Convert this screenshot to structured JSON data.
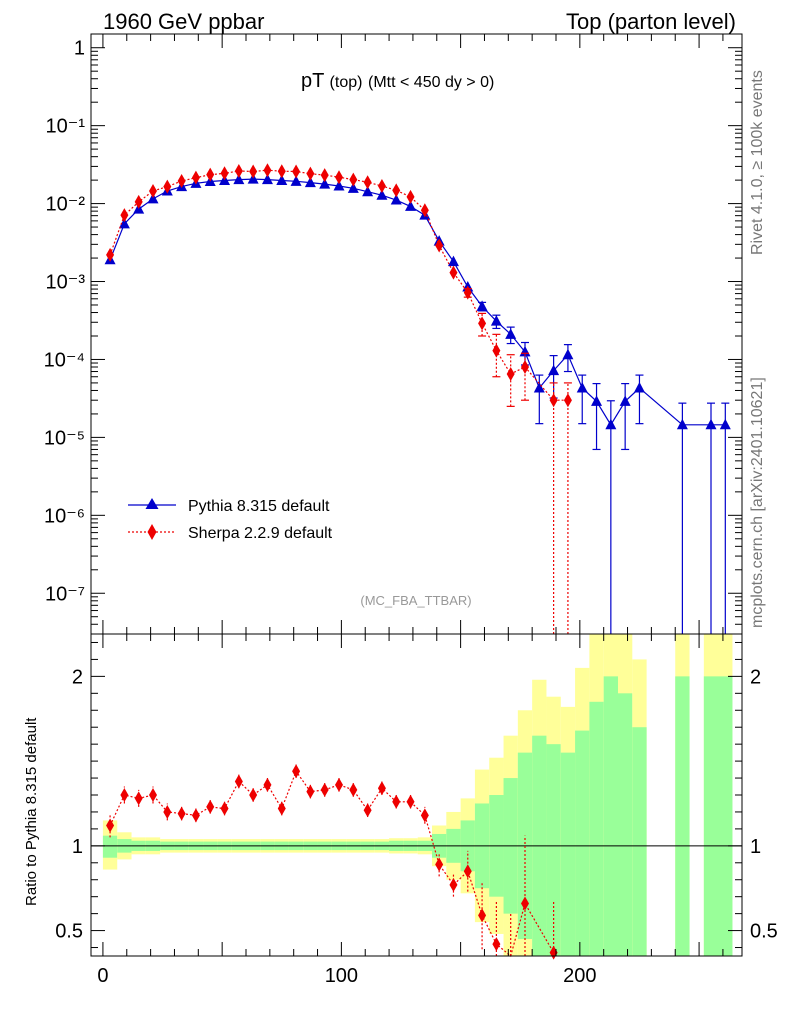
{
  "header": {
    "left": "1960 GeV ppbar",
    "right": "Top (parton level)"
  },
  "side_text": {
    "rivet": "Rivet 4.1.0, ≥ 100k events",
    "mcplots": "mcplots.cern.ch [arXiv:2401.10621]"
  },
  "colors": {
    "pythia": "#0000cc",
    "sherpa": "#ee0000",
    "band_inner": "#99ff99",
    "band_outer": "#ffff99"
  },
  "chart_data": [
    {
      "type": "line",
      "title_main": "pT",
      "title_sub": "(top)",
      "title_cut": "(Mtt < 450 dy > 0)",
      "watermark": "(MC_FBA_TTBAR)",
      "yscale": "log",
      "xlim": [
        -5,
        268
      ],
      "ylim": [
        3e-08,
        1.5
      ],
      "yticks": [
        {
          "label": "1",
          "value": 1
        },
        {
          "label": "10⁻¹",
          "value": 0.1
        },
        {
          "label": "10⁻²",
          "value": 0.01
        },
        {
          "label": "10⁻³",
          "value": 0.001
        },
        {
          "label": "10⁻⁴",
          "value": 0.0001
        },
        {
          "label": "10⁻⁵",
          "value": 1e-05
        },
        {
          "label": "10⁻⁶",
          "value": 1e-06
        },
        {
          "label": "10⁻⁷",
          "value": 1e-07
        }
      ],
      "legend_position": "lower-left",
      "series": [
        {
          "name": "Pythia 8.315 default",
          "marker": "triangle",
          "style": "solid",
          "x": [
            3,
            9,
            15,
            21,
            27,
            33,
            39,
            45,
            51,
            57,
            63,
            69,
            75,
            81,
            87,
            93,
            99,
            105,
            111,
            117,
            123,
            129,
            135,
            141,
            147,
            153,
            159,
            165,
            171,
            177,
            183,
            189,
            195,
            201,
            207,
            213,
            219,
            225,
            243,
            255,
            261
          ],
          "values": [
            0.0019,
            0.0055,
            0.0085,
            0.0115,
            0.0145,
            0.0165,
            0.0182,
            0.0192,
            0.0198,
            0.0203,
            0.0206,
            0.0203,
            0.0198,
            0.0193,
            0.0186,
            0.0178,
            0.0168,
            0.0157,
            0.0142,
            0.0128,
            0.0111,
            0.0092,
            0.0071,
            0.0033,
            0.0018,
            0.00085,
            0.00048,
            0.00031,
            0.00021,
            0.000125,
            4.3e-05,
            7.2e-05,
            0.000115,
            4.3e-05,
            2.9e-05,
            1.45e-05,
            2.9e-05,
            4.3e-05,
            1.45e-05,
            1.45e-05,
            1.45e-05
          ],
          "err_lo": [
            0.0001,
            0.0002,
            0.0003,
            0.0004,
            0.0004,
            0.0004,
            0.0004,
            0.0004,
            0.0004,
            0.0004,
            0.0004,
            0.0004,
            0.0004,
            0.0004,
            0.0004,
            0.0004,
            0.0004,
            0.0004,
            0.0003,
            0.0003,
            0.0003,
            0.0003,
            0.0002,
            0.00012,
            8e-05,
            5e-05,
            6e-05,
            6e-05,
            5e-05,
            4e-05,
            2.8e-05,
            4e-05,
            4.5e-05,
            2.8e-05,
            2.2e-05,
            1.5e-05,
            2.2e-05,
            2.8e-05,
            1.5e-05,
            1.5e-05,
            1.5e-05
          ],
          "err_hi": [
            0.0001,
            0.0002,
            0.0003,
            0.0004,
            0.0004,
            0.0004,
            0.0004,
            0.0004,
            0.0004,
            0.0004,
            0.0004,
            0.0004,
            0.0004,
            0.0004,
            0.0004,
            0.0004,
            0.0004,
            0.0004,
            0.0003,
            0.0003,
            0.0003,
            0.0003,
            0.0002,
            0.00012,
            8e-05,
            5e-05,
            6e-05,
            6e-05,
            5e-05,
            4e-05,
            2e-05,
            4e-05,
            4e-05,
            2e-05,
            2e-05,
            1.5e-05,
            2e-05,
            2e-05,
            1.3e-05,
            1.3e-05,
            1.3e-05
          ]
        },
        {
          "name": "Sherpa 2.2.9 default",
          "marker": "diamond",
          "style": "dotted",
          "x": [
            3,
            9,
            15,
            21,
            27,
            33,
            39,
            45,
            51,
            57,
            63,
            69,
            75,
            81,
            87,
            93,
            99,
            105,
            111,
            117,
            123,
            129,
            135,
            141,
            147,
            153,
            159,
            165,
            171,
            177,
            189,
            195
          ],
          "values": [
            0.0022,
            0.0071,
            0.0105,
            0.0145,
            0.0165,
            0.0195,
            0.0215,
            0.0235,
            0.0245,
            0.0262,
            0.0258,
            0.0268,
            0.026,
            0.0258,
            0.0242,
            0.0232,
            0.0218,
            0.0203,
            0.0188,
            0.0168,
            0.0148,
            0.0122,
            0.0082,
            0.0029,
            0.0013,
            0.00072,
            0.00029,
            0.00013,
            6.5e-05,
            8e-05,
            3e-05,
            3e-05
          ],
          "err_lo": [
            0.0002,
            0.0003,
            0.0004,
            0.0005,
            0.0005,
            0.0005,
            0.0005,
            0.0005,
            0.0005,
            0.0005,
            0.0005,
            0.0005,
            0.0005,
            0.0005,
            0.0005,
            0.0005,
            0.0005,
            0.0005,
            0.0005,
            0.0005,
            0.0004,
            0.0004,
            0.0003,
            0.0002,
            0.00012,
            9e-05,
            9e-05,
            7e-05,
            4e-05,
            5e-05,
            3e-05,
            3e-05
          ],
          "err_hi": [
            0.0002,
            0.0003,
            0.0004,
            0.0005,
            0.0005,
            0.0005,
            0.0005,
            0.0005,
            0.0005,
            0.0005,
            0.0005,
            0.0005,
            0.0005,
            0.0005,
            0.0005,
            0.0005,
            0.0005,
            0.0005,
            0.0005,
            0.0005,
            0.0004,
            0.0004,
            0.0003,
            0.0002,
            0.00012,
            9e-05,
            0.0001,
            8e-05,
            5e-05,
            4e-05,
            2e-05,
            2e-05
          ]
        }
      ]
    },
    {
      "type": "line",
      "ylabel": "Ratio to Pythia 8.315 default",
      "ylim": [
        0.35,
        2.25
      ],
      "xlim": [
        -5,
        268
      ],
      "yticks": [
        {
          "label": "0.5",
          "value": 0.5
        },
        {
          "label": "1",
          "value": 1
        },
        {
          "label": "2",
          "value": 2
        }
      ],
      "xticks": [
        {
          "label": "0",
          "value": 0
        },
        {
          "label": "100",
          "value": 100
        },
        {
          "label": "200",
          "value": 200
        }
      ],
      "reference_line": 1,
      "bands": {
        "bin_edges": [
          0,
          6,
          12,
          18,
          24,
          30,
          36,
          42,
          48,
          54,
          60,
          66,
          72,
          78,
          84,
          90,
          96,
          102,
          108,
          114,
          120,
          126,
          132,
          138,
          144,
          150,
          156,
          162,
          168,
          174,
          180,
          186,
          192,
          198,
          204,
          210,
          216,
          222,
          228,
          240,
          246,
          252,
          264
        ],
        "inner_lo": [
          0.93,
          0.96,
          0.97,
          0.97,
          0.975,
          0.975,
          0.975,
          0.975,
          0.975,
          0.975,
          0.975,
          0.975,
          0.975,
          0.975,
          0.975,
          0.975,
          0.975,
          0.975,
          0.975,
          0.975,
          0.97,
          0.97,
          0.97,
          0.93,
          0.9,
          0.85,
          0.75,
          0.7,
          0.6,
          0.45,
          0.35,
          0.35,
          0.35,
          0.35,
          0.35,
          0.35,
          0.35,
          0.35,
          null,
          0.35,
          null,
          0.35
        ],
        "inner_hi": [
          1.06,
          1.04,
          1.03,
          1.03,
          1.025,
          1.025,
          1.025,
          1.025,
          1.025,
          1.025,
          1.025,
          1.025,
          1.025,
          1.025,
          1.025,
          1.025,
          1.025,
          1.025,
          1.025,
          1.025,
          1.03,
          1.03,
          1.03,
          1.07,
          1.1,
          1.15,
          1.25,
          1.3,
          1.4,
          1.55,
          1.65,
          1.6,
          1.55,
          1.68,
          1.85,
          2.0,
          1.9,
          1.7,
          null,
          2.0,
          null,
          2.0
        ],
        "outer_lo": [
          0.86,
          0.92,
          0.95,
          0.95,
          0.96,
          0.96,
          0.96,
          0.96,
          0.96,
          0.96,
          0.96,
          0.96,
          0.96,
          0.96,
          0.96,
          0.96,
          0.96,
          0.96,
          0.96,
          0.96,
          0.955,
          0.955,
          0.95,
          0.88,
          0.8,
          0.72,
          0.55,
          0.48,
          0.35,
          0.35,
          0.35,
          0.35,
          0.35,
          0.35,
          0.35,
          0.35,
          0.35,
          0.35,
          null,
          0.35,
          null,
          0.35
        ],
        "outer_hi": [
          1.15,
          1.08,
          1.05,
          1.05,
          1.04,
          1.04,
          1.04,
          1.04,
          1.04,
          1.04,
          1.04,
          1.04,
          1.04,
          1.04,
          1.04,
          1.04,
          1.04,
          1.04,
          1.04,
          1.04,
          1.045,
          1.045,
          1.05,
          1.12,
          1.2,
          1.28,
          1.45,
          1.52,
          1.65,
          1.8,
          1.98,
          1.88,
          1.82,
          2.05,
          2.25,
          2.25,
          2.25,
          2.1,
          null,
          2.25,
          null,
          2.25
        ]
      },
      "series": [
        {
          "name": "Sherpa 2.2.9 default / Pythia 8.315 default",
          "x": [
            3,
            9,
            15,
            21,
            27,
            33,
            39,
            45,
            51,
            57,
            63,
            69,
            75,
            81,
            87,
            93,
            99,
            105,
            111,
            117,
            123,
            129,
            135,
            141,
            147,
            153,
            159,
            165,
            171,
            177,
            189
          ],
          "values": [
            1.12,
            1.3,
            1.28,
            1.3,
            1.2,
            1.19,
            1.18,
            1.23,
            1.22,
            1.38,
            1.3,
            1.36,
            1.22,
            1.44,
            1.32,
            1.33,
            1.36,
            1.33,
            1.21,
            1.34,
            1.26,
            1.26,
            1.18,
            0.89,
            0.77,
            0.85,
            0.59,
            0.42,
            0.3,
            0.66,
            0.37
          ],
          "err_lo": [
            0.07,
            0.05,
            0.05,
            0.05,
            0.05,
            0.04,
            0.04,
            0.04,
            0.04,
            0.04,
            0.04,
            0.04,
            0.04,
            0.04,
            0.04,
            0.04,
            0.04,
            0.04,
            0.04,
            0.04,
            0.04,
            0.04,
            0.05,
            0.07,
            0.07,
            0.12,
            0.2,
            0.25,
            0.3,
            0.4,
            0.3
          ],
          "err_hi": [
            0.07,
            0.05,
            0.05,
            0.05,
            0.05,
            0.04,
            0.04,
            0.04,
            0.04,
            0.04,
            0.04,
            0.04,
            0.04,
            0.04,
            0.04,
            0.04,
            0.04,
            0.04,
            0.04,
            0.04,
            0.04,
            0.04,
            0.05,
            0.07,
            0.07,
            0.12,
            0.2,
            0.25,
            0.3,
            0.4,
            0.3
          ]
        }
      ]
    }
  ]
}
